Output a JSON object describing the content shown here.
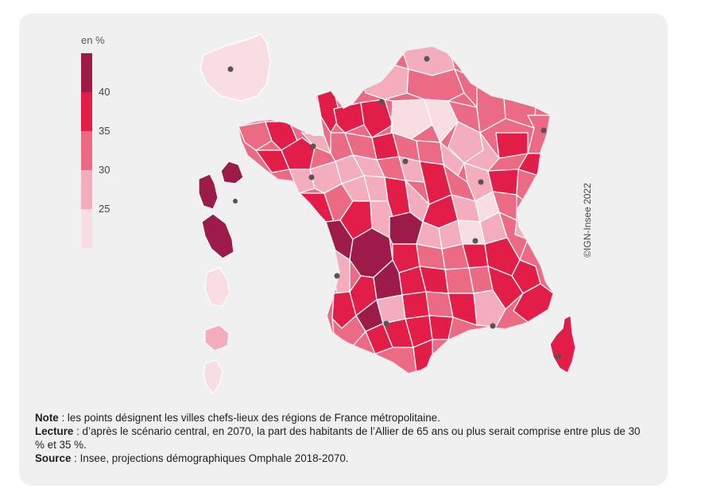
{
  "legend": {
    "unit": "en %",
    "ticks": [
      "40",
      "35",
      "30",
      "25"
    ],
    "classes": [
      {
        "range": "> 40",
        "color": "#9c1b48"
      },
      {
        "range": "35 - 40",
        "color": "#e11d48"
      },
      {
        "range": "30 - 35",
        "color": "#ec6b84"
      },
      {
        "range": "25 - 30",
        "color": "#f3adbd"
      },
      {
        "range": "< 25",
        "color": "#f8dde3"
      }
    ]
  },
  "copyright": "©IGN-Insee 2022",
  "notes": {
    "note_label": "Note",
    "note_text": " : les points désignent les villes chefs-lieux des régions de France métropolitaine.",
    "lecture_label": "Lecture",
    "lecture_text": " : d’après le scénario central, en 2070, la part des habitants de l’Allier de 65 ans ou plus serait comprise entre plus de 30 % et 35 %.",
    "source_label": "Source",
    "source_text": " : Insee, projections démographiques Omphale 2018-2070."
  },
  "map_icons": [
    "capital-dot-icon"
  ]
}
